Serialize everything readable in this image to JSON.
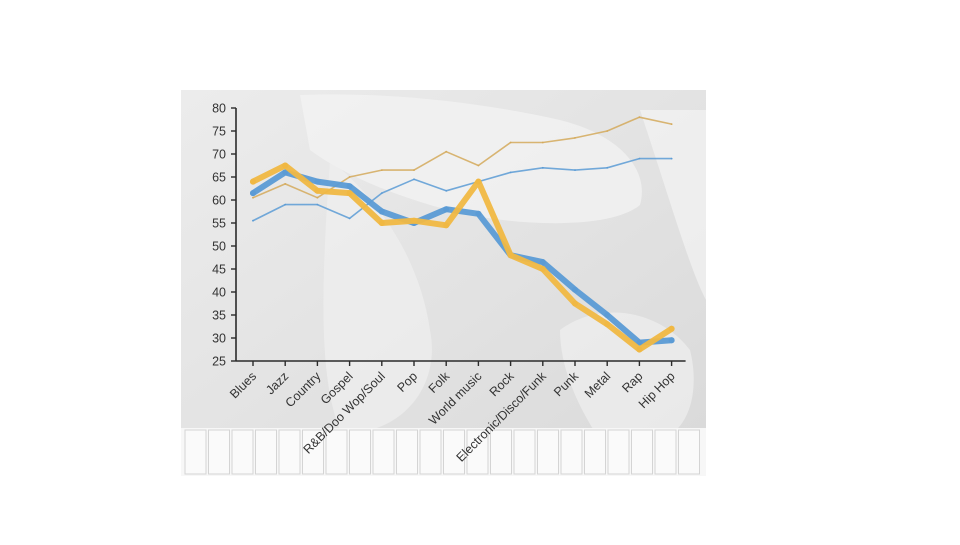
{
  "chart_data": {
    "type": "line",
    "categories": [
      "Blues",
      "Jazz",
      "Country",
      "Gospel",
      "R&B/Doo Wop/Soul",
      "Pop",
      "Folk",
      "World music",
      "Rock",
      "Electronic/Disco/Funk",
      "Punk",
      "Metal",
      "Rap",
      "Hip Hop"
    ],
    "ylim": [
      25,
      80
    ],
    "yticks": [
      25,
      30,
      35,
      40,
      45,
      50,
      55,
      60,
      65,
      70,
      75,
      80
    ],
    "series": [
      {
        "color": "#5b9bd5",
        "style": "thick",
        "values": [
          61.5,
          66,
          64,
          63,
          57.5,
          55,
          58,
          57,
          48,
          46.5,
          40.5,
          35,
          29,
          29.5
        ]
      },
      {
        "color": "#f0b843",
        "style": "thick",
        "values": [
          64,
          67.5,
          62,
          61.5,
          55,
          55.5,
          54.5,
          64,
          48,
          45,
          37.5,
          33,
          27.5,
          32
        ]
      },
      {
        "color": "#5b9bd5",
        "style": "thin",
        "values": [
          55.5,
          59,
          59,
          56,
          61.5,
          64.5,
          62,
          64,
          66,
          67,
          66.5,
          67,
          69,
          69
        ]
      },
      {
        "color": "#d4a95a",
        "style": "thin",
        "values": [
          60.5,
          63.5,
          60.5,
          65,
          66.5,
          66.5,
          70.5,
          67.5,
          72.5,
          72.5,
          73.5,
          75,
          78,
          76.5
        ]
      }
    ],
    "grid": false,
    "legend": "none"
  }
}
